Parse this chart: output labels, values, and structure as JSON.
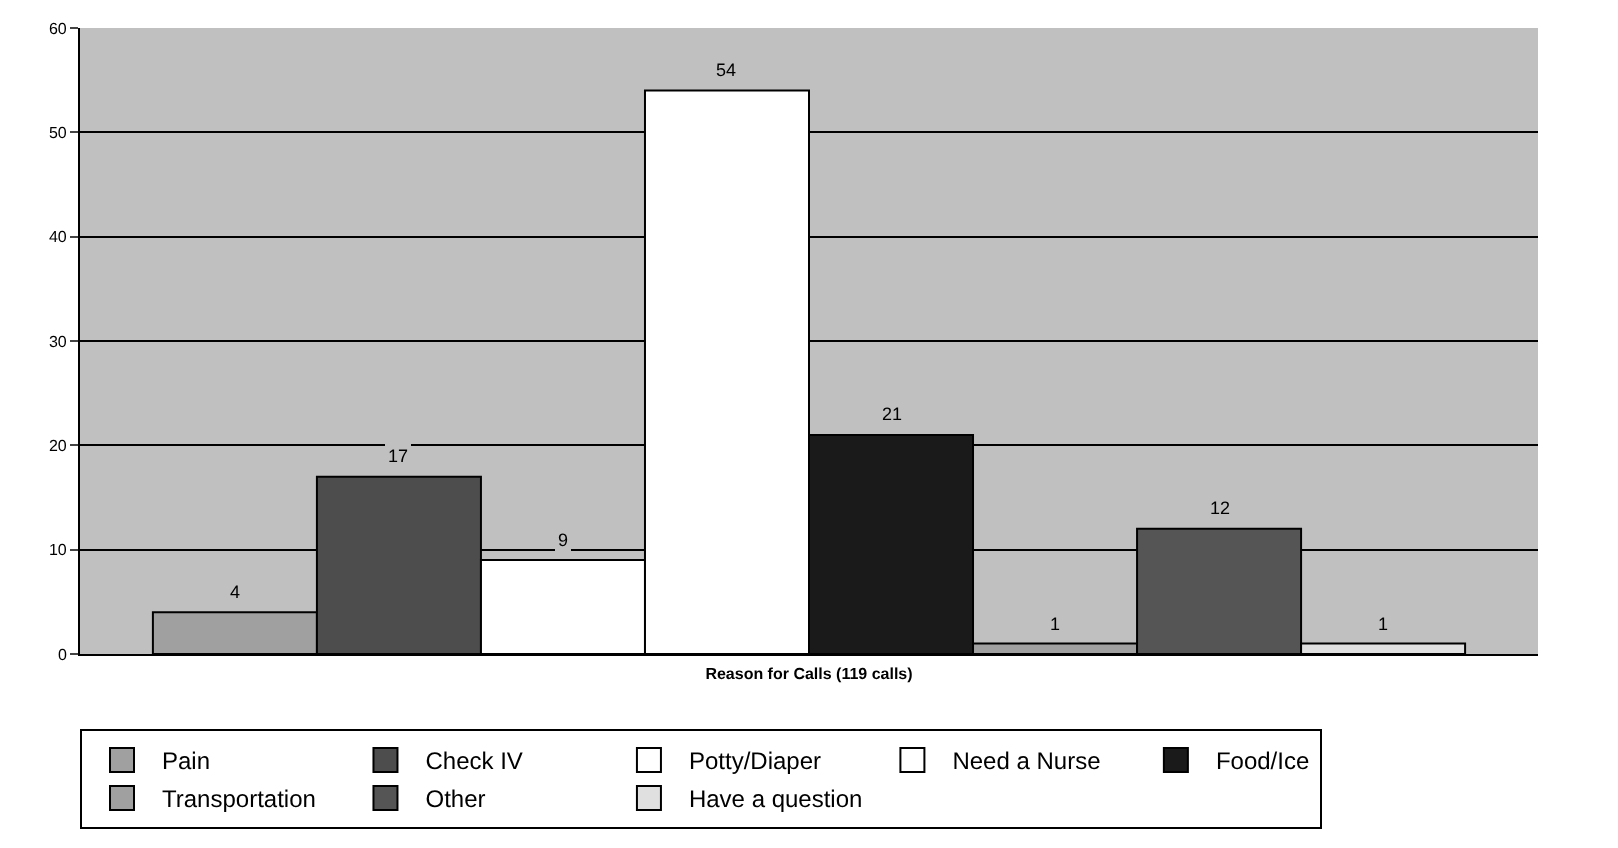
{
  "chart_data": {
    "type": "bar",
    "xlabel": "Reason for Calls (119 calls)",
    "categories": [
      null
    ],
    "series": [
      {
        "name": "Pain",
        "color": "#a0a0a0",
        "values": [
          4
        ]
      },
      {
        "name": "Check IV",
        "color": "#4d4d4d",
        "values": [
          17
        ]
      },
      {
        "name": "Potty/Diaper",
        "color": "#ffffff",
        "values": [
          9
        ]
      },
      {
        "name": "Need a Nurse",
        "color": "#ffffff",
        "values": [
          54
        ]
      },
      {
        "name": "Food/Ice",
        "color": "#1a1a1a",
        "values": [
          21
        ]
      },
      {
        "name": "Transportation",
        "color": "#a0a0a0",
        "values": [
          1
        ]
      },
      {
        "name": "Other",
        "color": "#555555",
        "values": [
          12
        ]
      },
      {
        "name": "Have a question",
        "color": "#e0e0e0",
        "values": [
          1
        ]
      }
    ],
    "ylim": [
      0,
      60
    ],
    "yticks": [
      0,
      10,
      20,
      30,
      40,
      50,
      60
    ],
    "grid": "y",
    "legend": "bottom",
    "data_labels": true
  }
}
